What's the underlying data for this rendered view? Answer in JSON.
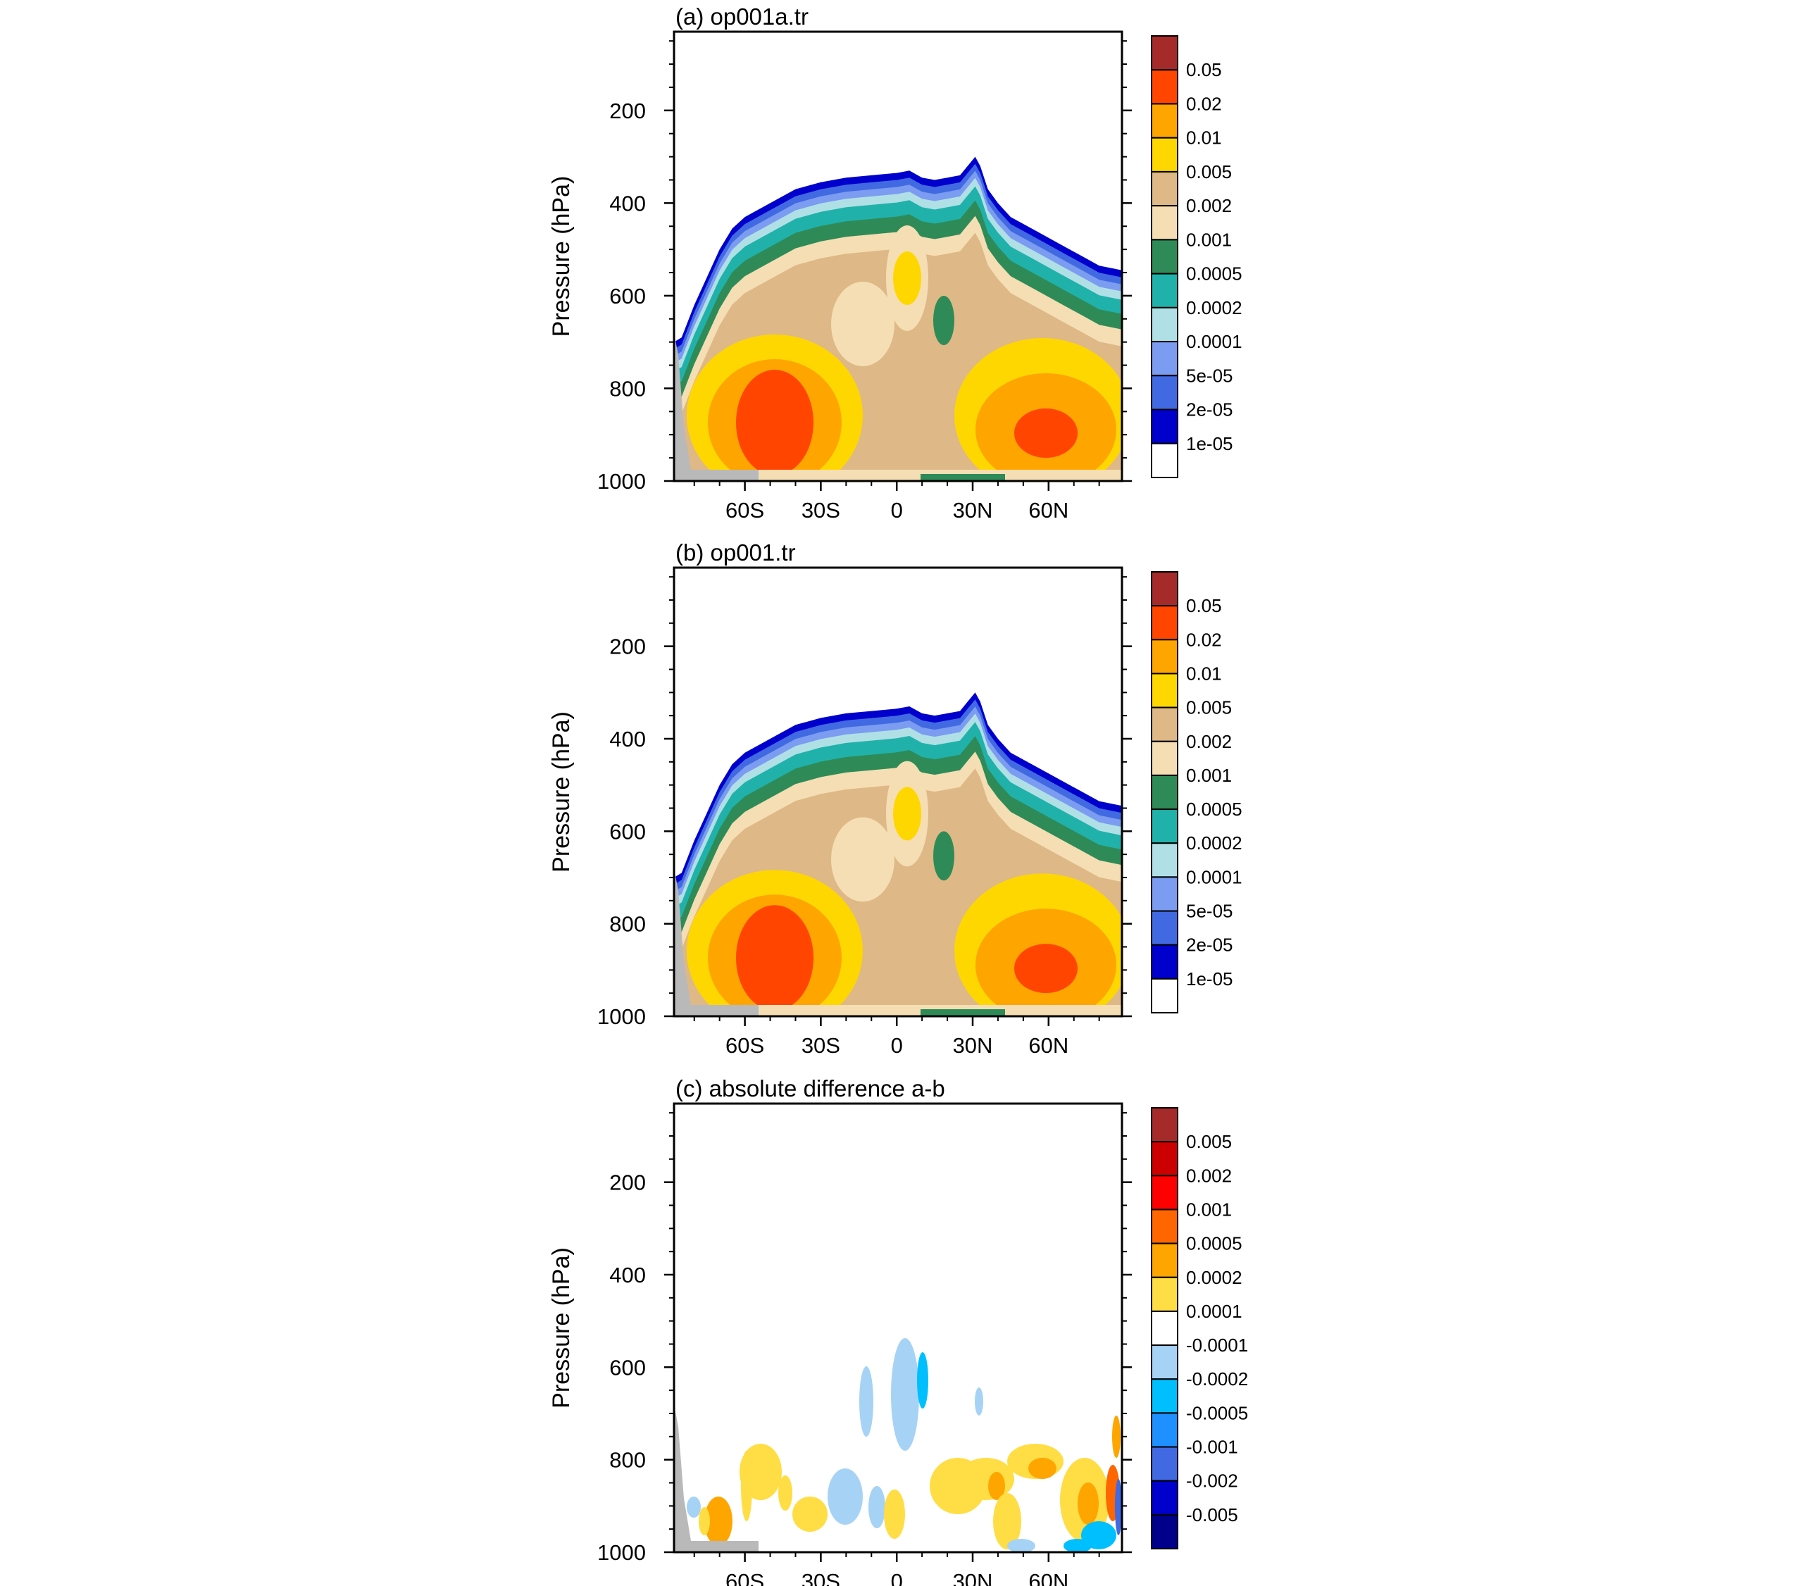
{
  "chart_data": [
    {
      "id": "a",
      "type": "contour",
      "title": "(a) op001a.tr",
      "ylabel": "Pressure (hPa)",
      "yticks": [
        "200",
        "400",
        "600",
        "800",
        "1000"
      ],
      "xticks": [
        "60S",
        "30S",
        "0",
        "30N",
        "60N"
      ],
      "ylim": [
        1000,
        30
      ],
      "xlim": [
        -88,
        89
      ],
      "colorbar": {
        "labels": [
          "0.05",
          "0.02",
          "0.01",
          "0.005",
          "0.002",
          "0.001",
          "0.0005",
          "0.0002",
          "0.0001",
          "5e-05",
          "2e-05",
          "1e-05"
        ],
        "colors": [
          "#a52a2a",
          "#ff4500",
          "#ffa500",
          "#ffd700",
          "#deb887",
          "#f5deb3",
          "#2e8b57",
          "#20b2aa",
          "#b0e0e6",
          "#7b9cf0",
          "#4169e1",
          "#0000cd",
          "#ffffff"
        ]
      },
      "profile_top_hPa": [
        [
          -88,
          700
        ],
        [
          -85,
          690
        ],
        [
          -80,
          620
        ],
        [
          -75,
          560
        ],
        [
          -70,
          500
        ],
        [
          -65,
          455
        ],
        [
          -60,
          430
        ],
        [
          -50,
          400
        ],
        [
          -45,
          385
        ],
        [
          -40,
          370
        ],
        [
          -30,
          355
        ],
        [
          -20,
          345
        ],
        [
          -10,
          340
        ],
        [
          0,
          335
        ],
        [
          5,
          330
        ],
        [
          10,
          345
        ],
        [
          15,
          350
        ],
        [
          20,
          345
        ],
        [
          25,
          340
        ],
        [
          28,
          320
        ],
        [
          31,
          300
        ],
        [
          33,
          320
        ],
        [
          36,
          370
        ],
        [
          40,
          400
        ],
        [
          45,
          430
        ],
        [
          55,
          460
        ],
        [
          65,
          490
        ],
        [
          75,
          520
        ],
        [
          80,
          535
        ],
        [
          89,
          545
        ]
      ]
    },
    {
      "id": "b",
      "type": "contour",
      "title": "(b) op001.tr",
      "ylabel": "Pressure (hPa)",
      "yticks": [
        "200",
        "400",
        "600",
        "800",
        "1000"
      ],
      "xticks": [
        "60S",
        "30S",
        "0",
        "30N",
        "60N"
      ],
      "ylim": [
        1000,
        30
      ],
      "xlim": [
        -88,
        89
      ],
      "colorbar": {
        "labels": [
          "0.05",
          "0.02",
          "0.01",
          "0.005",
          "0.002",
          "0.001",
          "0.0005",
          "0.0002",
          "0.0001",
          "5e-05",
          "2e-05",
          "1e-05"
        ],
        "colors": [
          "#a52a2a",
          "#ff4500",
          "#ffa500",
          "#ffd700",
          "#deb887",
          "#f5deb3",
          "#2e8b57",
          "#20b2aa",
          "#b0e0e6",
          "#7b9cf0",
          "#4169e1",
          "#0000cd",
          "#ffffff"
        ]
      },
      "profile_top_hPa": [
        [
          -88,
          700
        ],
        [
          -85,
          690
        ],
        [
          -80,
          620
        ],
        [
          -75,
          560
        ],
        [
          -70,
          500
        ],
        [
          -65,
          455
        ],
        [
          -60,
          430
        ],
        [
          -50,
          400
        ],
        [
          -45,
          385
        ],
        [
          -40,
          370
        ],
        [
          -30,
          355
        ],
        [
          -20,
          345
        ],
        [
          -10,
          340
        ],
        [
          0,
          335
        ],
        [
          5,
          330
        ],
        [
          10,
          345
        ],
        [
          15,
          350
        ],
        [
          20,
          345
        ],
        [
          25,
          340
        ],
        [
          28,
          320
        ],
        [
          31,
          300
        ],
        [
          33,
          320
        ],
        [
          36,
          370
        ],
        [
          40,
          400
        ],
        [
          45,
          430
        ],
        [
          55,
          460
        ],
        [
          65,
          490
        ],
        [
          75,
          520
        ],
        [
          80,
          535
        ],
        [
          89,
          545
        ]
      ]
    },
    {
      "id": "c",
      "type": "contour",
      "title": "(c) absolute difference a-b",
      "ylabel": "Pressure (hPa)",
      "yticks": [
        "200",
        "400",
        "600",
        "800",
        "1000"
      ],
      "xticks": [
        "60S",
        "30S",
        "0",
        "30N",
        "60N"
      ],
      "ylim": [
        1000,
        30
      ],
      "xlim": [
        -88,
        89
      ],
      "colorbar": {
        "labels": [
          "0.005",
          "0.002",
          "0.001",
          "0.0005",
          "0.0002",
          "0.0001",
          "-0.0001",
          "-0.0002",
          "-0.0005",
          "-0.001",
          "-0.002",
          "-0.005"
        ],
        "colors": [
          "#a52a2a",
          "#cc0000",
          "#ff0000",
          "#ff6600",
          "#ffa500",
          "#ffdd44",
          "#ffffff",
          "#a6d3f5",
          "#00bfff",
          "#1e90ff",
          "#4169e1",
          "#0000cd",
          "#00008b"
        ]
      }
    }
  ]
}
